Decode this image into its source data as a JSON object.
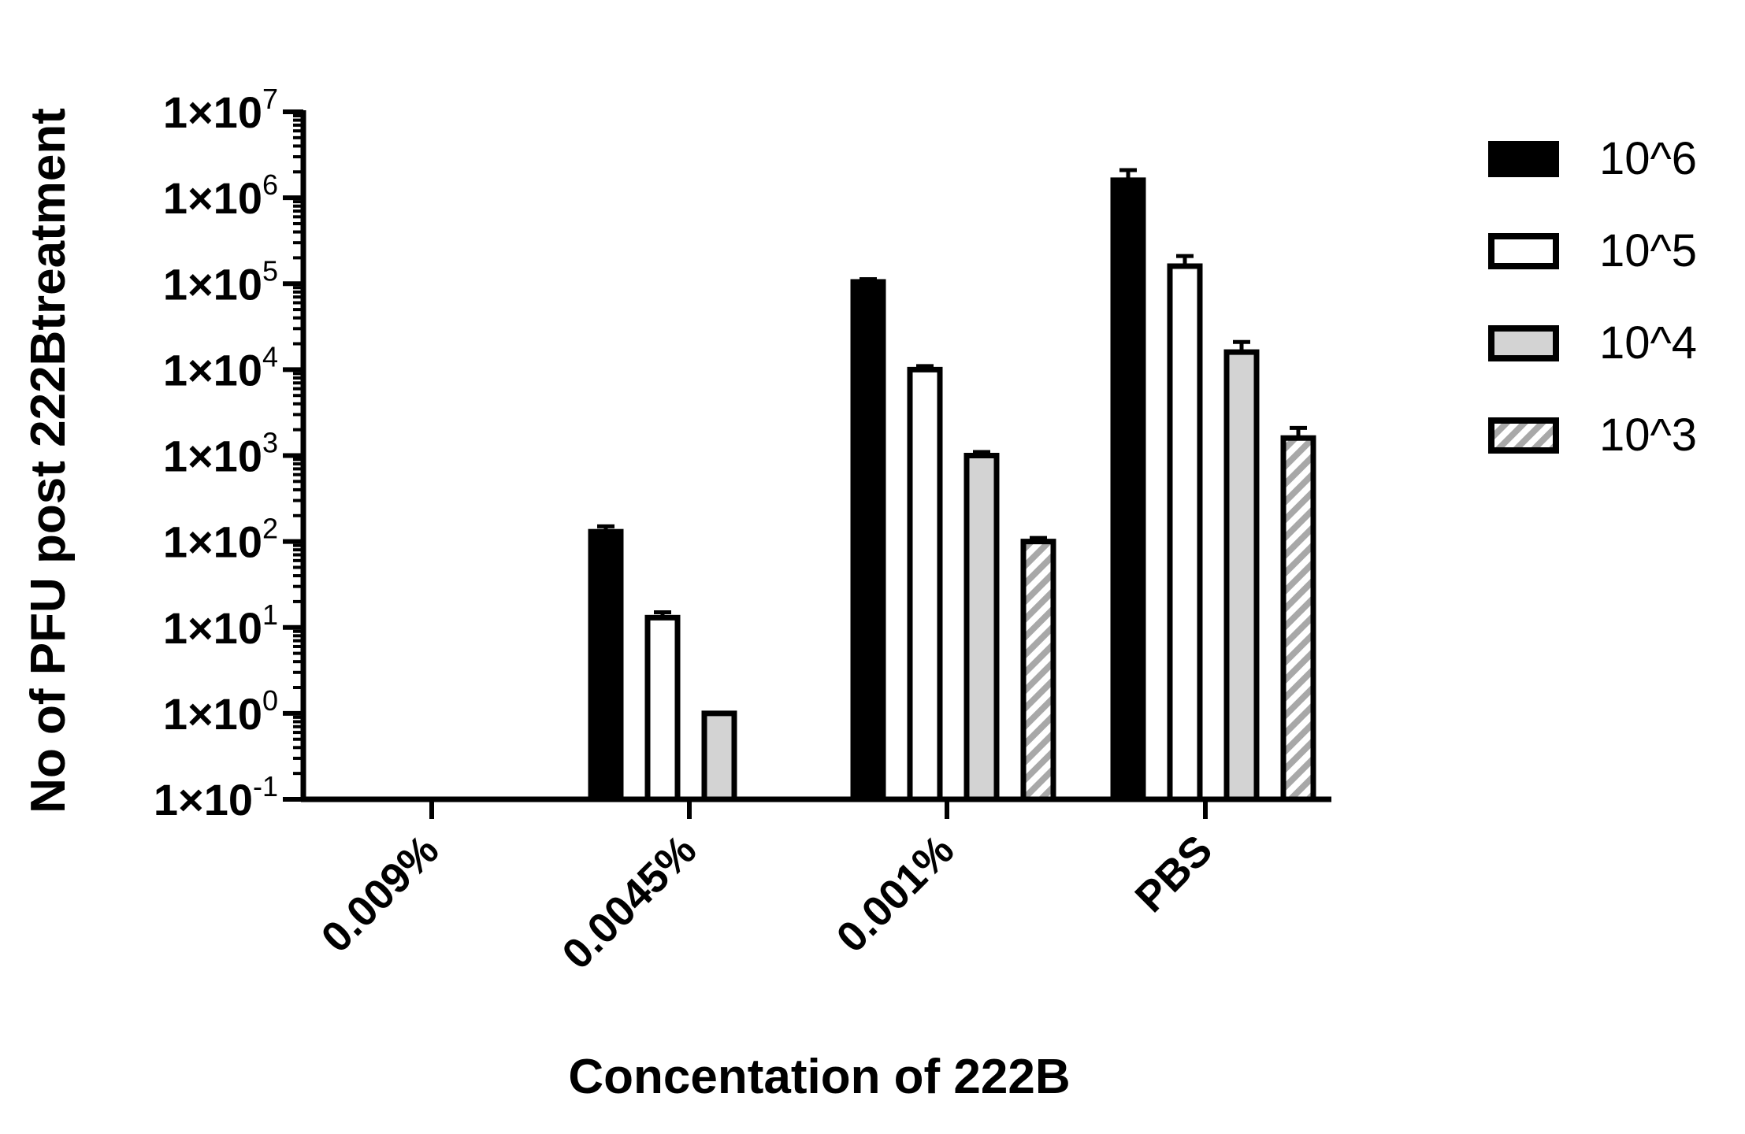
{
  "chart_data": {
    "type": "bar",
    "title": "",
    "xlabel": "Concentation of 222B",
    "ylabel": "No of PFU post 222Btreatment",
    "yscale": "log",
    "ylim": [
      0.1,
      10000000
    ],
    "yticks": [
      {
        "value": 0.1,
        "exp": "-1"
      },
      {
        "value": 1,
        "exp": "0"
      },
      {
        "value": 10,
        "exp": "1"
      },
      {
        "value": 100,
        "exp": "2"
      },
      {
        "value": 1000,
        "exp": "3"
      },
      {
        "value": 10000,
        "exp": "4"
      },
      {
        "value": 100000,
        "exp": "5"
      },
      {
        "value": 1000000,
        "exp": "6"
      },
      {
        "value": 10000000,
        "exp": "7"
      }
    ],
    "tick_prefix": "1×10",
    "categories": [
      "0.009%",
      "0.0045%",
      "0.001%",
      "PBS"
    ],
    "series": [
      {
        "name": "10^6",
        "fill": "solid",
        "values": [
          null,
          130,
          105000,
          1600000
        ],
        "errors": [
          null,
          20,
          8000,
          500000
        ]
      },
      {
        "name": "10^5",
        "fill": "white",
        "values": [
          null,
          13,
          10000,
          160000
        ],
        "errors": [
          null,
          2,
          1000,
          50000
        ]
      },
      {
        "name": "10^4",
        "fill": "gray",
        "values": [
          null,
          1,
          1000,
          16000
        ],
        "errors": [
          null,
          0,
          100,
          5000
        ]
      },
      {
        "name": "10^3",
        "fill": "hatch",
        "values": [
          null,
          null,
          100,
          1600
        ],
        "errors": [
          null,
          null,
          10,
          500
        ]
      }
    ],
    "legend_position": "top-right",
    "colors": {
      "black": "#000000",
      "gray": "#d3d3d3",
      "hatch": "#a8a8a8",
      "white": "#ffffff"
    }
  }
}
